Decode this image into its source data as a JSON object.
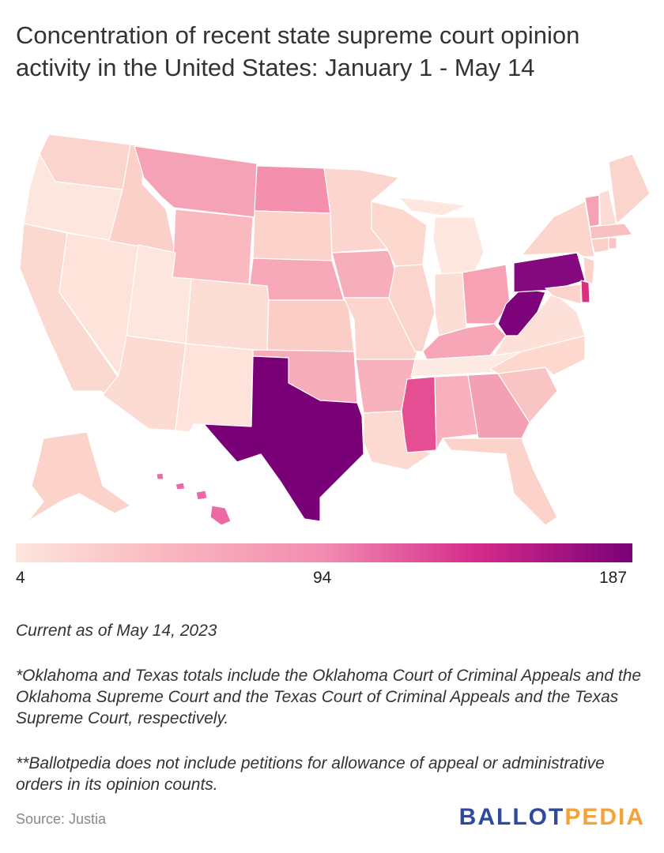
{
  "title": "Concentration of recent state supreme court opinion activity in the United States: January 1 - May 14",
  "legend": {
    "min_label": "4",
    "mid_label": "94",
    "max_label": "187",
    "colors": [
      "#fde6dd",
      "#f9b6bf",
      "#ea4f95",
      "#7a0077"
    ]
  },
  "map_data": {
    "type": "choropleth",
    "region": "United States",
    "value_range": [
      4,
      187
    ],
    "states": [
      {
        "name": "Texas",
        "level": "highest"
      },
      {
        "name": "Pennsylvania",
        "level": "very high"
      },
      {
        "name": "West Virginia",
        "level": "very high"
      },
      {
        "name": "Delaware",
        "level": "high"
      },
      {
        "name": "Mississippi",
        "level": "high"
      },
      {
        "name": "North Dakota",
        "level": "medium-high"
      },
      {
        "name": "Hawaii",
        "level": "medium-high"
      },
      {
        "name": "Montana",
        "level": "medium"
      },
      {
        "name": "Ohio",
        "level": "medium"
      },
      {
        "name": "Georgia",
        "level": "medium"
      },
      {
        "name": "Kentucky",
        "level": "medium"
      },
      {
        "name": "Vermont",
        "level": "medium"
      },
      {
        "name": "Nebraska",
        "level": "medium-low"
      },
      {
        "name": "Iowa",
        "level": "medium-low"
      },
      {
        "name": "Oklahoma",
        "level": "medium-low"
      },
      {
        "name": "Arkansas",
        "level": "medium-low"
      },
      {
        "name": "Alabama",
        "level": "medium-low"
      },
      {
        "name": "Wyoming",
        "level": "medium-low"
      },
      {
        "name": "Tennessee",
        "level": "lowest"
      },
      {
        "name": "Michigan",
        "level": "lowest"
      },
      {
        "name": "Utah",
        "level": "lowest"
      },
      {
        "name": "Oregon",
        "level": "lowest"
      }
    ]
  },
  "footnotes": {
    "date": "Current as of May 14, 2023",
    "note1": "*Oklahoma and Texas totals include the Oklahoma Court of Criminal Appeals and the Oklahoma Supreme Court and the Texas Court of Criminal Appeals and the Texas Supreme Court, respectively.",
    "note2": "**Ballotpedia does not include petitions for allowance of appeal or administrative orders in its opinion counts."
  },
  "source": "Source: Justia",
  "logo": {
    "part1": "BALLOT",
    "part2": "PEDIA"
  }
}
